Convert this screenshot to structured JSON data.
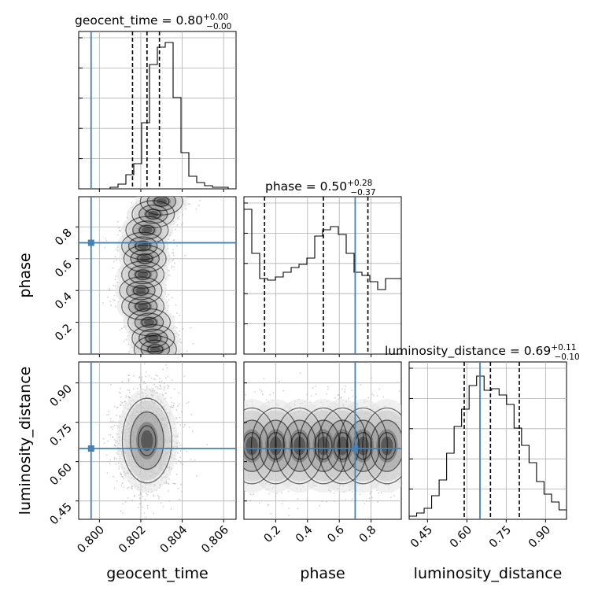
{
  "chart_data": {
    "type": "corner",
    "parameters": [
      "geocent_time",
      "phase",
      "luminosity_distance"
    ],
    "truth_color": "#4682b4",
    "truths": {
      "geocent_time": 0.7996,
      "phase": 0.7,
      "luminosity_distance": 0.65
    },
    "ranges": {
      "geocent_time": [
        0.799,
        0.8066
      ],
      "phase": [
        0.0,
        0.99
      ],
      "luminosity_distance": [
        0.38,
        0.98
      ]
    },
    "ticks": {
      "geocent_time": {
        "values": [
          0.8,
          0.802,
          0.804,
          0.806
        ],
        "labels": [
          "0.800",
          "0.802",
          "0.804",
          "0.806"
        ]
      },
      "phase": {
        "values": [
          0.2,
          0.4,
          0.6,
          0.8
        ],
        "labels": [
          "0.2",
          "0.4",
          "0.6",
          "0.8"
        ]
      },
      "luminosity_distance": {
        "values": [
          0.45,
          0.6,
          0.75,
          0.9
        ],
        "labels": [
          "0.45",
          "0.60",
          "0.75",
          "0.90"
        ]
      }
    },
    "titles": {
      "geocent_time": {
        "name": "geocent_time",
        "median": "0.80",
        "plus": "+0.00",
        "minus": "−0.00"
      },
      "phase": {
        "name": "phase",
        "median": "0.50",
        "plus": "+0.28",
        "minus": "−0.37"
      },
      "luminosity_distance": {
        "name": "luminosity_distance",
        "median": "0.69",
        "plus": "+0.11",
        "minus": "−0.10"
      }
    },
    "quantiles": {
      "geocent_time": [
        0.8016,
        0.8023,
        0.8029
      ],
      "phase": [
        0.13,
        0.5,
        0.78
      ],
      "luminosity_distance": [
        0.59,
        0.69,
        0.8
      ]
    },
    "histograms": {
      "geocent_time": {
        "range": [
          0.799,
          0.8066
        ],
        "counts": [
          0.0,
          0.0,
          0.0,
          0.0,
          0.01,
          0.03,
          0.09,
          0.16,
          0.42,
          0.79,
          0.9,
          0.93,
          0.58,
          0.23,
          0.08,
          0.04,
          0.02,
          0.01,
          0.01,
          0.0
        ]
      },
      "phase": {
        "range": [
          0.0,
          0.99
        ],
        "counts": [
          0.92,
          0.64,
          0.48,
          0.47,
          0.49,
          0.52,
          0.55,
          0.57,
          0.61,
          0.75,
          0.79,
          0.81,
          0.76,
          0.64,
          0.52,
          0.5,
          0.46,
          0.41,
          0.48,
          0.48
        ]
      },
      "luminosity_distance": {
        "range": [
          0.38,
          0.98
        ],
        "counts": [
          0.02,
          0.04,
          0.07,
          0.15,
          0.25,
          0.42,
          0.59,
          0.7,
          0.85,
          0.91,
          0.82,
          0.83,
          0.79,
          0.73,
          0.58,
          0.47,
          0.36,
          0.24,
          0.16,
          0.11,
          0.06
        ]
      }
    },
    "samples_2d": {
      "geocent_time__phase": {
        "centers": [
          [
            0.8027,
            0.03
          ],
          [
            0.8026,
            0.1
          ],
          [
            0.8024,
            0.2
          ],
          [
            0.8021,
            0.3
          ],
          [
            0.802,
            0.4
          ],
          [
            0.8021,
            0.5
          ],
          [
            0.8022,
            0.6
          ],
          [
            0.8021,
            0.68
          ],
          [
            0.8023,
            0.78
          ],
          [
            0.8026,
            0.88
          ],
          [
            0.803,
            0.96
          ]
        ],
        "sx": 0.0006,
        "sy": 0.05
      },
      "geocent_time__luminosity_distance": {
        "centers": [
          [
            0.8023,
            0.68
          ]
        ],
        "sx": 0.0007,
        "sy": 0.095
      },
      "phase__luminosity_distance": {
        "centers": [
          [
            0.05,
            0.66
          ],
          [
            0.2,
            0.66
          ],
          [
            0.35,
            0.66
          ],
          [
            0.5,
            0.66
          ],
          [
            0.62,
            0.66
          ],
          [
            0.75,
            0.66
          ],
          [
            0.9,
            0.66
          ]
        ],
        "sx": 0.09,
        "sy": 0.085
      }
    },
    "xlabel_geocent_time": "geocent_time",
    "xlabel_phase": "phase",
    "xlabel_luminosity_distance": "luminosity_distance",
    "ylabel_phase": "phase",
    "ylabel_luminosity_distance": "luminosity_distance"
  }
}
